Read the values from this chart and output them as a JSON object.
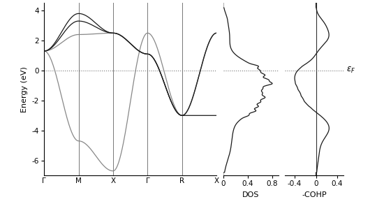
{
  "ylim": [
    -7,
    4.5
  ],
  "yticks": [
    -6,
    -4,
    -2,
    0,
    2,
    4
  ],
  "ylabel": "Energy (eV)",
  "fermi_level": 0.0,
  "band_kpoints": [
    "Γ",
    "M",
    "X",
    "Γ",
    "R",
    "X"
  ],
  "dos_xlabel": "DOS",
  "dos_xlim": [
    0,
    0.9
  ],
  "dos_xticks": [
    0,
    0.4,
    0.8
  ],
  "cohp_xlabel": "-COHP",
  "cohp_xlim": [
    -0.58,
    0.52
  ],
  "cohp_xticks": [
    -0.4,
    0,
    0.4
  ],
  "ef_label": "ε_F",
  "dark_color": "#1a1a1a",
  "gray_color": "#888888",
  "line_gray": "#999999",
  "label_fontsize": 8,
  "tick_fontsize": 7.5
}
